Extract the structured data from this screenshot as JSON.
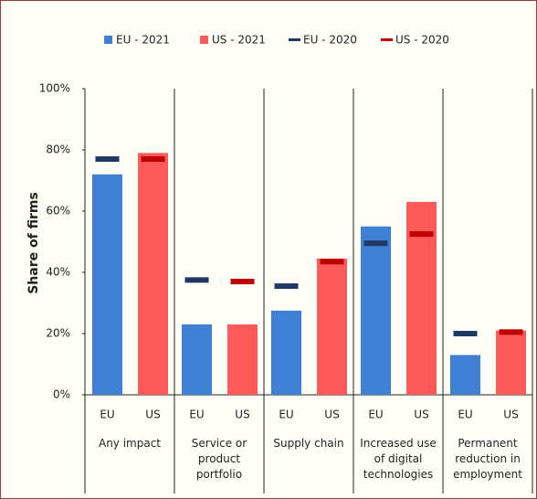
{
  "chart_data": {
    "type": "bar",
    "y_label": "Share of firms",
    "categories": [
      "Any impact",
      "Service or product portfolio",
      "Supply chain",
      "Increased use of digital technologies",
      "Permanent reduction in employment"
    ],
    "subcategories": [
      "EU",
      "US"
    ],
    "series": [
      {
        "name": "EU - 2021",
        "color": "#3f7fd4",
        "style": "bar",
        "values": [
          72,
          23,
          27.5,
          55,
          13
        ]
      },
      {
        "name": "US - 2021",
        "color": "#ff5a5a",
        "style": "bar",
        "values": [
          79,
          23,
          44.5,
          63,
          21
        ]
      },
      {
        "name": "EU - 2020",
        "color": "#1f3864",
        "style": "marker",
        "values": [
          77,
          37.5,
          35.5,
          49.5,
          20
        ]
      },
      {
        "name": "US - 2020",
        "color": "#c00000",
        "style": "marker",
        "values": [
          77,
          37,
          43.5,
          52.5,
          20.5
        ]
      }
    ],
    "ylim": [
      0,
      100
    ],
    "yticks": [
      {
        "value": 0,
        "label": "0%"
      },
      {
        "value": 20,
        "label": "20%"
      },
      {
        "value": 40,
        "label": "40%"
      },
      {
        "value": 60,
        "label": "60%"
      },
      {
        "value": 80,
        "label": "80%"
      },
      {
        "value": 100,
        "label": "100%"
      }
    ],
    "legend": "top"
  }
}
